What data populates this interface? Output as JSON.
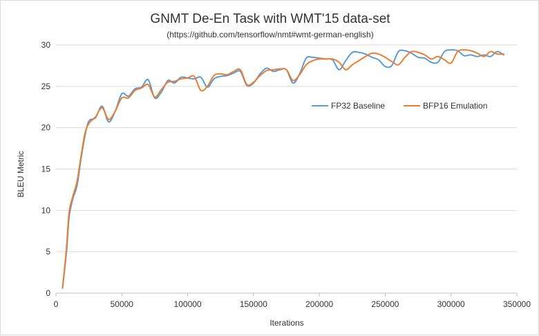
{
  "chart_data": {
    "type": "line",
    "title": "GNMT De-En Task with WMT'15 data-set",
    "subtitle": "(https://github.com/tensorflow/nmt#wmt-german-english)",
    "xlabel": "Iterations",
    "ylabel": "BLEU Metric",
    "xlim": [
      0,
      350000
    ],
    "ylim": [
      0,
      30
    ],
    "xticks": [
      0,
      50000,
      100000,
      150000,
      200000,
      250000,
      300000,
      350000
    ],
    "yticks": [
      0,
      5,
      10,
      15,
      20,
      25,
      30
    ],
    "grid": "horizontal",
    "legend_position": "right",
    "series": [
      {
        "name": "FP32 Baseline",
        "color": "#5b9bd5",
        "points": [
          [
            5000,
            0.6
          ],
          [
            8000,
            5
          ],
          [
            10000,
            9.2
          ],
          [
            13000,
            11.5
          ],
          [
            16000,
            13
          ],
          [
            19000,
            16.2
          ],
          [
            22000,
            19
          ],
          [
            25000,
            20.8
          ],
          [
            30000,
            21.2
          ],
          [
            35000,
            22.6
          ],
          [
            40000,
            20.7
          ],
          [
            45000,
            22
          ],
          [
            50000,
            24.1
          ],
          [
            55000,
            23.8
          ],
          [
            60000,
            24.7
          ],
          [
            65000,
            24.9
          ],
          [
            70000,
            25.8
          ],
          [
            75000,
            23.6
          ],
          [
            80000,
            24.3
          ],
          [
            85000,
            25.7
          ],
          [
            90000,
            25.4
          ],
          [
            95000,
            26.1
          ],
          [
            100000,
            26.0
          ],
          [
            105000,
            25.9
          ],
          [
            110000,
            26.1
          ],
          [
            115000,
            24.9
          ],
          [
            120000,
            25.9
          ],
          [
            125000,
            26.2
          ],
          [
            130000,
            26.3
          ],
          [
            135000,
            26.6
          ],
          [
            140000,
            26.8
          ],
          [
            145000,
            25.1
          ],
          [
            150000,
            25.4
          ],
          [
            155000,
            26.5
          ],
          [
            160000,
            27.2
          ],
          [
            165000,
            26.8
          ],
          [
            170000,
            27.0
          ],
          [
            175000,
            27.0
          ],
          [
            180000,
            25.4
          ],
          [
            185000,
            26.5
          ],
          [
            190000,
            28.4
          ],
          [
            195000,
            28.5
          ],
          [
            200000,
            28.4
          ],
          [
            205000,
            28.3
          ],
          [
            210000,
            28.2
          ],
          [
            215000,
            27.0
          ],
          [
            220000,
            28.1
          ],
          [
            225000,
            29.1
          ],
          [
            230000,
            29.1
          ],
          [
            235000,
            28.9
          ],
          [
            240000,
            28.5
          ],
          [
            245000,
            28.2
          ],
          [
            250000,
            27.4
          ],
          [
            255000,
            27.5
          ],
          [
            260000,
            29.2
          ],
          [
            265000,
            29.3
          ],
          [
            270000,
            29.0
          ],
          [
            275000,
            28.5
          ],
          [
            280000,
            28.4
          ],
          [
            285000,
            27.9
          ],
          [
            290000,
            27.9
          ],
          [
            295000,
            29.2
          ],
          [
            300000,
            29.4
          ],
          [
            305000,
            29.3
          ],
          [
            310000,
            28.7
          ],
          [
            315000,
            28.8
          ],
          [
            320000,
            28.6
          ],
          [
            325000,
            28.8
          ],
          [
            330000,
            28.6
          ],
          [
            335000,
            29.2
          ],
          [
            340000,
            28.8
          ]
        ]
      },
      {
        "name": "BFP16 Emulation",
        "color": "#ed7d31",
        "points": [
          [
            5000,
            0.6
          ],
          [
            8000,
            5.5
          ],
          [
            10000,
            9.8
          ],
          [
            13000,
            11.8
          ],
          [
            16000,
            13.5
          ],
          [
            19000,
            16.5
          ],
          [
            22000,
            19.3
          ],
          [
            25000,
            20.5
          ],
          [
            30000,
            21.3
          ],
          [
            35000,
            22.4
          ],
          [
            40000,
            21.0
          ],
          [
            45000,
            22.0
          ],
          [
            50000,
            23.6
          ],
          [
            55000,
            23.6
          ],
          [
            60000,
            24.5
          ],
          [
            65000,
            24.8
          ],
          [
            70000,
            25.2
          ],
          [
            75000,
            23.7
          ],
          [
            80000,
            24.6
          ],
          [
            85000,
            25.5
          ],
          [
            90000,
            25.6
          ],
          [
            95000,
            25.9
          ],
          [
            100000,
            26.0
          ],
          [
            105000,
            26.2
          ],
          [
            110000,
            24.5
          ],
          [
            115000,
            25.0
          ],
          [
            120000,
            26.3
          ],
          [
            125000,
            26.5
          ],
          [
            130000,
            26.4
          ],
          [
            135000,
            26.8
          ],
          [
            140000,
            27.0
          ],
          [
            145000,
            25.2
          ],
          [
            150000,
            25.5
          ],
          [
            155000,
            26.3
          ],
          [
            160000,
            26.9
          ],
          [
            165000,
            27.0
          ],
          [
            170000,
            27.1
          ],
          [
            175000,
            27.0
          ],
          [
            180000,
            25.7
          ],
          [
            185000,
            26.4
          ],
          [
            190000,
            27.6
          ],
          [
            195000,
            28.1
          ],
          [
            200000,
            28.3
          ],
          [
            205000,
            28.3
          ],
          [
            210000,
            28.3
          ],
          [
            215000,
            27.9
          ],
          [
            220000,
            27.0
          ],
          [
            225000,
            27.6
          ],
          [
            230000,
            28.1
          ],
          [
            235000,
            28.6
          ],
          [
            240000,
            29.0
          ],
          [
            245000,
            28.9
          ],
          [
            250000,
            28.5
          ],
          [
            255000,
            28.0
          ],
          [
            260000,
            27.6
          ],
          [
            265000,
            28.5
          ],
          [
            270000,
            29.2
          ],
          [
            275000,
            29.1
          ],
          [
            280000,
            28.8
          ],
          [
            285000,
            28.3
          ],
          [
            290000,
            28.6
          ],
          [
            295000,
            28.2
          ],
          [
            300000,
            27.8
          ],
          [
            305000,
            29.2
          ],
          [
            310000,
            29.4
          ],
          [
            315000,
            29.3
          ],
          [
            320000,
            29.0
          ],
          [
            325000,
            28.6
          ],
          [
            330000,
            29.2
          ],
          [
            335000,
            28.9
          ],
          [
            340000,
            28.9
          ]
        ]
      }
    ]
  }
}
